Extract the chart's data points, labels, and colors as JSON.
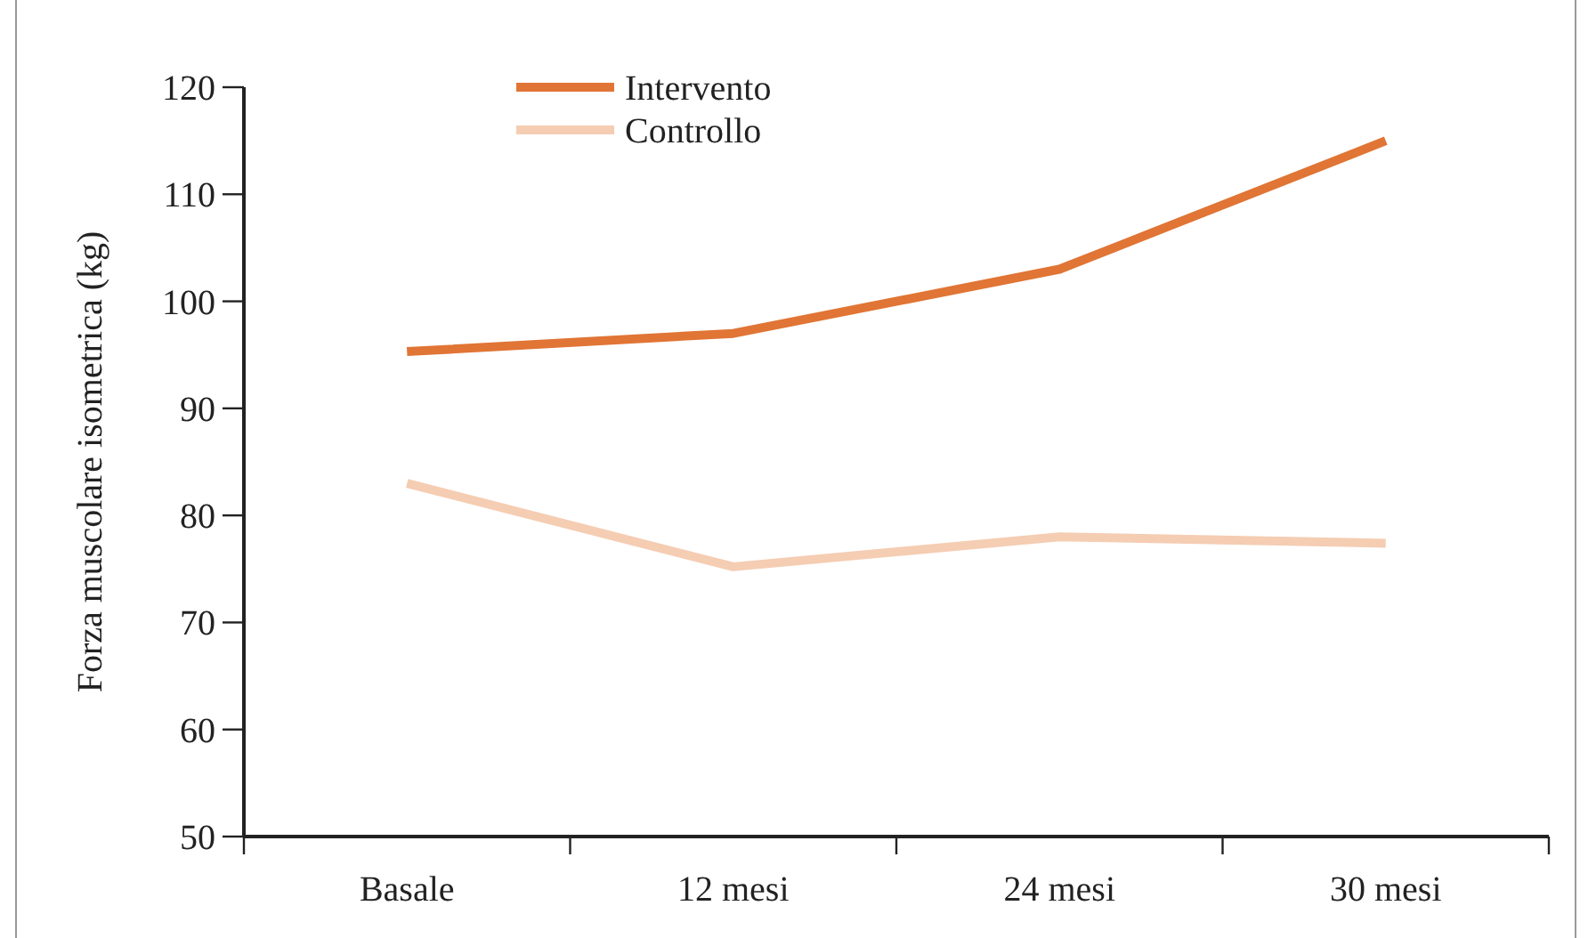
{
  "chart_data": {
    "type": "line",
    "ylabel": "Forza muscolare isometrica (kg)",
    "categories": [
      "Basale",
      "12 mesi",
      "24 mesi",
      "30 mesi"
    ],
    "series": [
      {
        "name": "Intervento",
        "color": "#e07535",
        "values": [
          95.3,
          97,
          103,
          115
        ]
      },
      {
        "name": "Controllo",
        "color": "#f5cdb3",
        "values": [
          83,
          75.2,
          78,
          77.4
        ]
      }
    ],
    "ylim": [
      50,
      120
    ],
    "yticks": [
      50,
      60,
      70,
      80,
      90,
      100,
      110,
      120
    ],
    "grid": false,
    "legend": "top left",
    "marker": "none",
    "line_style": "solid"
  }
}
